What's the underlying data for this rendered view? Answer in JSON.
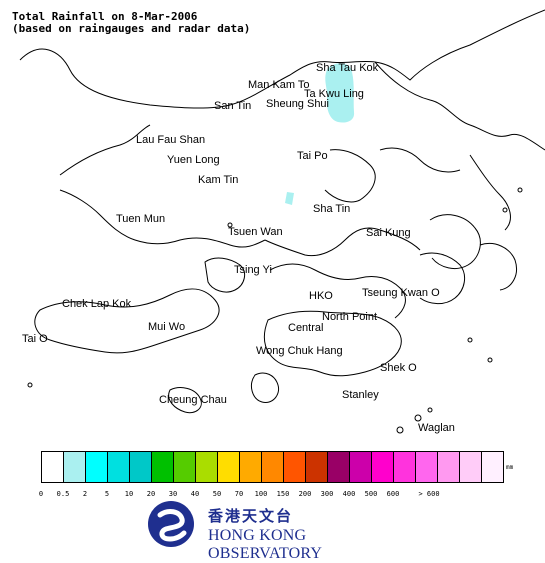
{
  "title": {
    "line1": "Total Rainfall on 8-Mar-2006",
    "line2": "(based on raingauges and radar data)"
  },
  "map": {
    "places": [
      {
        "name": "Sha Tau Kok"
      },
      {
        "name": "Man Kam To"
      },
      {
        "name": "Ta Kwu Ling"
      },
      {
        "name": "San Tin"
      },
      {
        "name": "Sheung Shui"
      },
      {
        "name": "Lau Fau Shan"
      },
      {
        "name": "Yuen Long"
      },
      {
        "name": "Tai Po"
      },
      {
        "name": "Kam Tin"
      },
      {
        "name": "Sha Tin"
      },
      {
        "name": "Tuen Mun"
      },
      {
        "name": "Tsuen Wan"
      },
      {
        "name": "Sai Kung"
      },
      {
        "name": "Tsing Yi"
      },
      {
        "name": "Chek Lap Kok"
      },
      {
        "name": "HKO"
      },
      {
        "name": "Tseung Kwan O"
      },
      {
        "name": "North Point"
      },
      {
        "name": "Mui Wo"
      },
      {
        "name": "Central"
      },
      {
        "name": "Tai O"
      },
      {
        "name": "Wong Chuk Hang"
      },
      {
        "name": "Shek O"
      },
      {
        "name": "Stanley"
      },
      {
        "name": "Cheung Chau"
      },
      {
        "name": "Waglan"
      }
    ],
    "rain_patch_color": "#aaf0f0"
  },
  "legend": {
    "unit": "mm",
    "swatches": [
      {
        "color": "#ffffff"
      },
      {
        "color": "#aaf0f0"
      },
      {
        "color": "#00ffff"
      },
      {
        "color": "#00e0e0"
      },
      {
        "color": "#00c8c8"
      },
      {
        "color": "#00c000"
      },
      {
        "color": "#55cc00"
      },
      {
        "color": "#aadd00"
      },
      {
        "color": "#ffdd00"
      },
      {
        "color": "#ffaa00"
      },
      {
        "color": "#ff8800"
      },
      {
        "color": "#ff5500"
      },
      {
        "color": "#cc3300"
      },
      {
        "color": "#990066"
      },
      {
        "color": "#cc00aa"
      },
      {
        "color": "#ff00cc"
      },
      {
        "color": "#ff33dd"
      },
      {
        "color": "#ff66ee"
      },
      {
        "color": "#ff99f0"
      },
      {
        "color": "#ffccf8"
      },
      {
        "color": "#fff0ff"
      }
    ],
    "ticks": [
      "0",
      "0.5",
      "2",
      "5",
      "10",
      "20",
      "30",
      "40",
      "50",
      "70",
      "100",
      "150",
      "200",
      "300",
      "400",
      "500",
      "600",
      "> 600"
    ]
  },
  "logo": {
    "chinese": "香港天文台",
    "english": "HONG KONG OBSERVATORY"
  }
}
